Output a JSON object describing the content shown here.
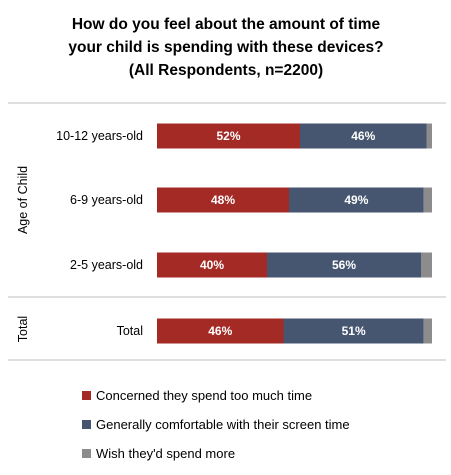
{
  "chart_data": {
    "type": "bar",
    "orientation": "horizontal",
    "stacked": true,
    "title_lines": [
      "How do you feel about the amount of time",
      "your child is spending with these devices?",
      "(All Respondents, n=2200)"
    ],
    "groups": [
      {
        "label": "Age of Child",
        "categories": [
          "10-12 years-old",
          "6-9 years-old",
          "2-5 years-old"
        ]
      },
      {
        "label": "Total",
        "categories": [
          ""
        ]
      }
    ],
    "categories": [
      "10-12 years-old",
      "6-9 years-old",
      "2-5 years-old",
      "Total"
    ],
    "series": [
      {
        "name": "Concerned they spend too much time",
        "color": "#A42A25",
        "values": [
          52,
          48,
          40,
          46
        ],
        "labels": [
          "52%",
          "48%",
          "40%",
          "46%"
        ]
      },
      {
        "name": "Generally comfortable with their screen time",
        "color": "#465670",
        "values": [
          46,
          49,
          56,
          51
        ],
        "labels": [
          "46%",
          "49%",
          "56%",
          "51%"
        ]
      },
      {
        "name": "Wish they'd spend more",
        "color": "#8C8C8C",
        "values": [
          2,
          3,
          4,
          3
        ]
      }
    ],
    "xlim": [
      0,
      100
    ],
    "grid": false,
    "legend_position": "bottom"
  }
}
